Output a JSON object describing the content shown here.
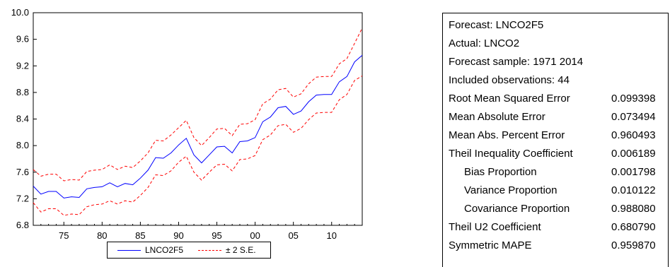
{
  "chart_data": {
    "type": "line",
    "x": [
      1971,
      1972,
      1973,
      1974,
      1975,
      1976,
      1977,
      1978,
      1979,
      1980,
      1981,
      1982,
      1983,
      1984,
      1985,
      1986,
      1987,
      1988,
      1989,
      1990,
      1991,
      1992,
      1993,
      1994,
      1995,
      1996,
      1997,
      1998,
      1999,
      2000,
      2001,
      2002,
      2003,
      2004,
      2005,
      2006,
      2007,
      2008,
      2009,
      2010,
      2011,
      2012,
      2013,
      2014
    ],
    "series": [
      {
        "name": "LNCO2F5",
        "color": "#0000ff",
        "style": "solid",
        "values": [
          7.39,
          7.27,
          7.31,
          7.31,
          7.21,
          7.23,
          7.22,
          7.35,
          7.37,
          7.38,
          7.44,
          7.38,
          7.43,
          7.41,
          7.51,
          7.63,
          7.82,
          7.81,
          7.89,
          8.01,
          8.11,
          7.86,
          7.74,
          7.86,
          7.98,
          7.99,
          7.89,
          8.06,
          8.07,
          8.12,
          8.36,
          8.43,
          8.57,
          8.59,
          8.47,
          8.52,
          8.66,
          8.76,
          8.77,
          8.77,
          8.96,
          9.04,
          9.26,
          9.36
        ]
      },
      {
        "name": "± 2 S.E.",
        "color": "#ff0000",
        "style": "dashed",
        "values": [
          7.64,
          7.54,
          7.57,
          7.57,
          7.47,
          7.49,
          7.48,
          7.61,
          7.63,
          7.64,
          7.71,
          7.64,
          7.69,
          7.67,
          7.77,
          7.89,
          8.08,
          8.07,
          8.16,
          8.27,
          8.38,
          8.12,
          8.0,
          8.12,
          8.25,
          8.26,
          8.15,
          8.32,
          8.33,
          8.39,
          8.63,
          8.7,
          8.84,
          8.86,
          8.73,
          8.78,
          8.93,
          9.03,
          9.04,
          9.04,
          9.23,
          9.31,
          9.54,
          9.77
        ]
      },
      {
        "name": "",
        "color": "#ff0000",
        "style": "dashed",
        "values": [
          7.14,
          7.0,
          7.05,
          7.05,
          6.95,
          6.97,
          6.96,
          7.08,
          7.11,
          7.12,
          7.17,
          7.12,
          7.17,
          7.15,
          7.25,
          7.37,
          7.56,
          7.55,
          7.62,
          7.75,
          7.84,
          7.6,
          7.48,
          7.6,
          7.71,
          7.72,
          7.62,
          7.79,
          7.8,
          7.85,
          8.09,
          8.16,
          8.3,
          8.32,
          8.2,
          8.26,
          8.39,
          8.49,
          8.5,
          8.5,
          8.69,
          8.77,
          8.98,
          9.05
        ]
      }
    ],
    "xlim": [
      1971,
      2014
    ],
    "ylim": [
      6.8,
      10.0
    ],
    "yticks": [
      6.8,
      7.2,
      7.6,
      8.0,
      8.4,
      8.8,
      9.2,
      9.6,
      10.0
    ],
    "ytick_labels": [
      "6.8",
      "7.2",
      "7.6",
      "8.0",
      "8.4",
      "8.8",
      "9.2",
      "9.6",
      "10.0"
    ],
    "xticks": [
      1975,
      1980,
      1985,
      1990,
      1995,
      2000,
      2005,
      2010
    ],
    "xtick_labels": [
      "75",
      "80",
      "85",
      "90",
      "95",
      "00",
      "05",
      "10"
    ],
    "grid": false,
    "legend_position": "bottom"
  },
  "legend": {
    "forecast_label": "LNCO2F5",
    "se_label": "± 2 S.E."
  },
  "stats": {
    "forecast_line": "Forecast: LNCO2F5",
    "actual_line": "Actual: LNCO2",
    "sample_line": "Forecast sample: 1971 2014",
    "included_line": "Included observations: 44",
    "rows": [
      {
        "label": "Root Mean Squared Error",
        "value": "0.099398"
      },
      {
        "label": "Mean Absolute Error",
        "value": "0.073494"
      },
      {
        "label": "Mean Abs. Percent Error",
        "value": "0.960493"
      },
      {
        "label": "Theil Inequality Coefficient",
        "value": "0.006189"
      },
      {
        "label": "Bias Proportion",
        "value": "0.001798"
      },
      {
        "label": "Variance Proportion",
        "value": "0.010122"
      },
      {
        "label": "Covariance Proportion",
        "value": "0.988080"
      },
      {
        "label": "Theil U2 Coefficient",
        "value": "0.680790"
      },
      {
        "label": "Symmetric MAPE",
        "value": "0.959870"
      }
    ]
  }
}
